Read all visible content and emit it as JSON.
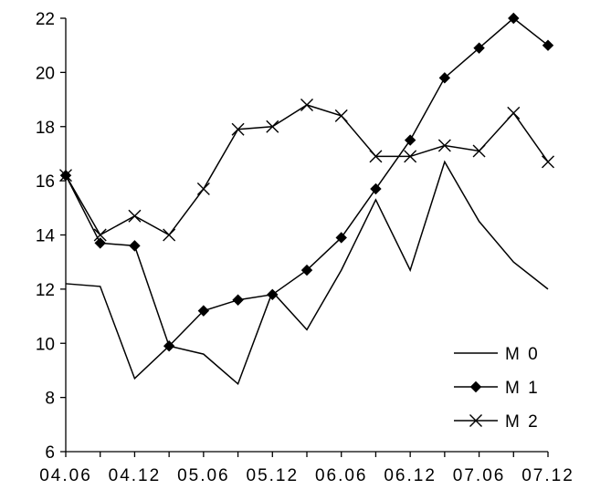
{
  "chart_data": {
    "type": "line",
    "title": "",
    "xlabel": "",
    "ylabel": "",
    "categories": [
      "04.06",
      "",
      "04.12",
      "",
      "05.06",
      "",
      "05.12",
      "",
      "06.06",
      "",
      "06.12",
      "",
      "07.06",
      "",
      "07.12"
    ],
    "x_tick_labels": [
      "04.06",
      "04.12",
      "05.06",
      "05.12",
      "06.06",
      "06.12",
      "07.06",
      "07.12"
    ],
    "ylim": [
      6,
      22
    ],
    "y_ticks": [
      6,
      8,
      10,
      12,
      14,
      16,
      18,
      20,
      22
    ],
    "grid": false,
    "legend_position": "bottom-right",
    "series": [
      {
        "name": "M 0",
        "marker": "none",
        "color": "#000000",
        "values": [
          12.2,
          12.1,
          8.7,
          9.9,
          9.6,
          8.5,
          11.9,
          10.5,
          12.7,
          15.3,
          12.7,
          16.7,
          14.5,
          13.0,
          12.0
        ]
      },
      {
        "name": "M 1",
        "marker": "diamond",
        "color": "#000000",
        "values": [
          16.2,
          13.7,
          13.6,
          9.9,
          11.2,
          11.6,
          11.8,
          12.7,
          13.9,
          15.7,
          17.5,
          19.8,
          20.9,
          22.0,
          21.0
        ]
      },
      {
        "name": "M 2",
        "marker": "x",
        "color": "#000000",
        "values": [
          16.2,
          14.0,
          14.7,
          14.0,
          15.7,
          17.9,
          18.0,
          18.8,
          18.4,
          16.9,
          16.9,
          17.3,
          17.1,
          18.5,
          16.7
        ]
      }
    ]
  }
}
